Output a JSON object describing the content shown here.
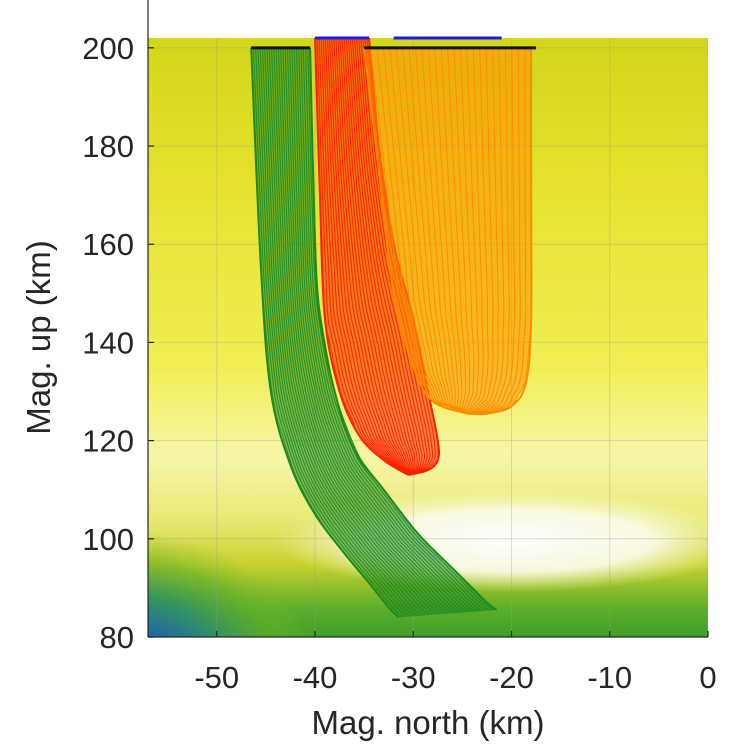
{
  "chart_data": {
    "type": "line",
    "title": "",
    "xlabel": "Mag. north (km)",
    "ylabel": "Mag. up (km)",
    "xlim": [
      -57,
      0
    ],
    "ylim": [
      80,
      202
    ],
    "xticks": [
      -50,
      -40,
      -30,
      -20,
      -10,
      0
    ],
    "yticks": [
      80,
      100,
      120,
      140,
      160,
      180,
      200
    ],
    "grid": true,
    "background": "colormap field (blue-green-yellow-white), white band near 100 km altitude, dark blue at lower-left",
    "series": [
      {
        "color": "#1f8a1f",
        "start_segment": {
          "x": [
            -46.5,
            -40.5
          ],
          "y": 200
        },
        "left_edge": [
          [
            -46.5,
            200
          ],
          [
            -45.5,
            155
          ],
          [
            -44.5,
            130
          ],
          [
            -42.5,
            115
          ],
          [
            -40,
            105
          ],
          [
            -37,
            97
          ],
          [
            -34.5,
            91
          ],
          [
            -32.5,
            86
          ],
          [
            -31.5,
            84
          ]
        ],
        "right_edge": [
          [
            -40.5,
            200
          ],
          [
            -40,
            160
          ],
          [
            -39.5,
            145
          ],
          [
            -38,
            130
          ],
          [
            -36,
            118
          ],
          [
            -33,
            110
          ],
          [
            -29.5,
            101
          ],
          [
            -25.5,
            93
          ],
          [
            -22.5,
            87
          ],
          [
            -21.5,
            85.5
          ]
        ],
        "tip": [
          -21.5,
          85.5
        ],
        "min_y": 84
      },
      {
        "color": "#ff2000",
        "start_segment": {
          "x": [
            -40,
            -34.5
          ],
          "y": 202
        },
        "left_edge": [
          [
            -40,
            202
          ],
          [
            -39.5,
            170
          ],
          [
            -39,
            145
          ],
          [
            -37.5,
            130
          ],
          [
            -35.5,
            121
          ],
          [
            -33,
            116
          ],
          [
            -30.5,
            113
          ]
        ],
        "right_edge": [
          [
            -34.5,
            202
          ],
          [
            -33.5,
            180
          ],
          [
            -32,
            160
          ],
          [
            -30,
            145
          ],
          [
            -28.5,
            130
          ],
          [
            -27.5,
            120
          ],
          [
            -27.5,
            116
          ],
          [
            -28.5,
            114
          ],
          [
            -30.5,
            113
          ]
        ],
        "min_y": 113
      },
      {
        "color": "#ff8c00",
        "start_segment": {
          "x": [
            -32,
            -21
          ],
          "y": 202
        },
        "left_edge": [
          [
            -35,
            200
          ],
          [
            -33.5,
            175
          ],
          [
            -32,
            150
          ],
          [
            -30,
            135
          ],
          [
            -28,
            128
          ],
          [
            -24.5,
            125.5
          ]
        ],
        "right_edge": [
          [
            -18,
            200
          ],
          [
            -18,
            170
          ],
          [
            -18,
            145
          ],
          [
            -18.5,
            132
          ],
          [
            -20,
            127
          ],
          [
            -22.5,
            125.5
          ],
          [
            -24.5,
            125.5
          ]
        ],
        "min_y": 125
      }
    ]
  }
}
